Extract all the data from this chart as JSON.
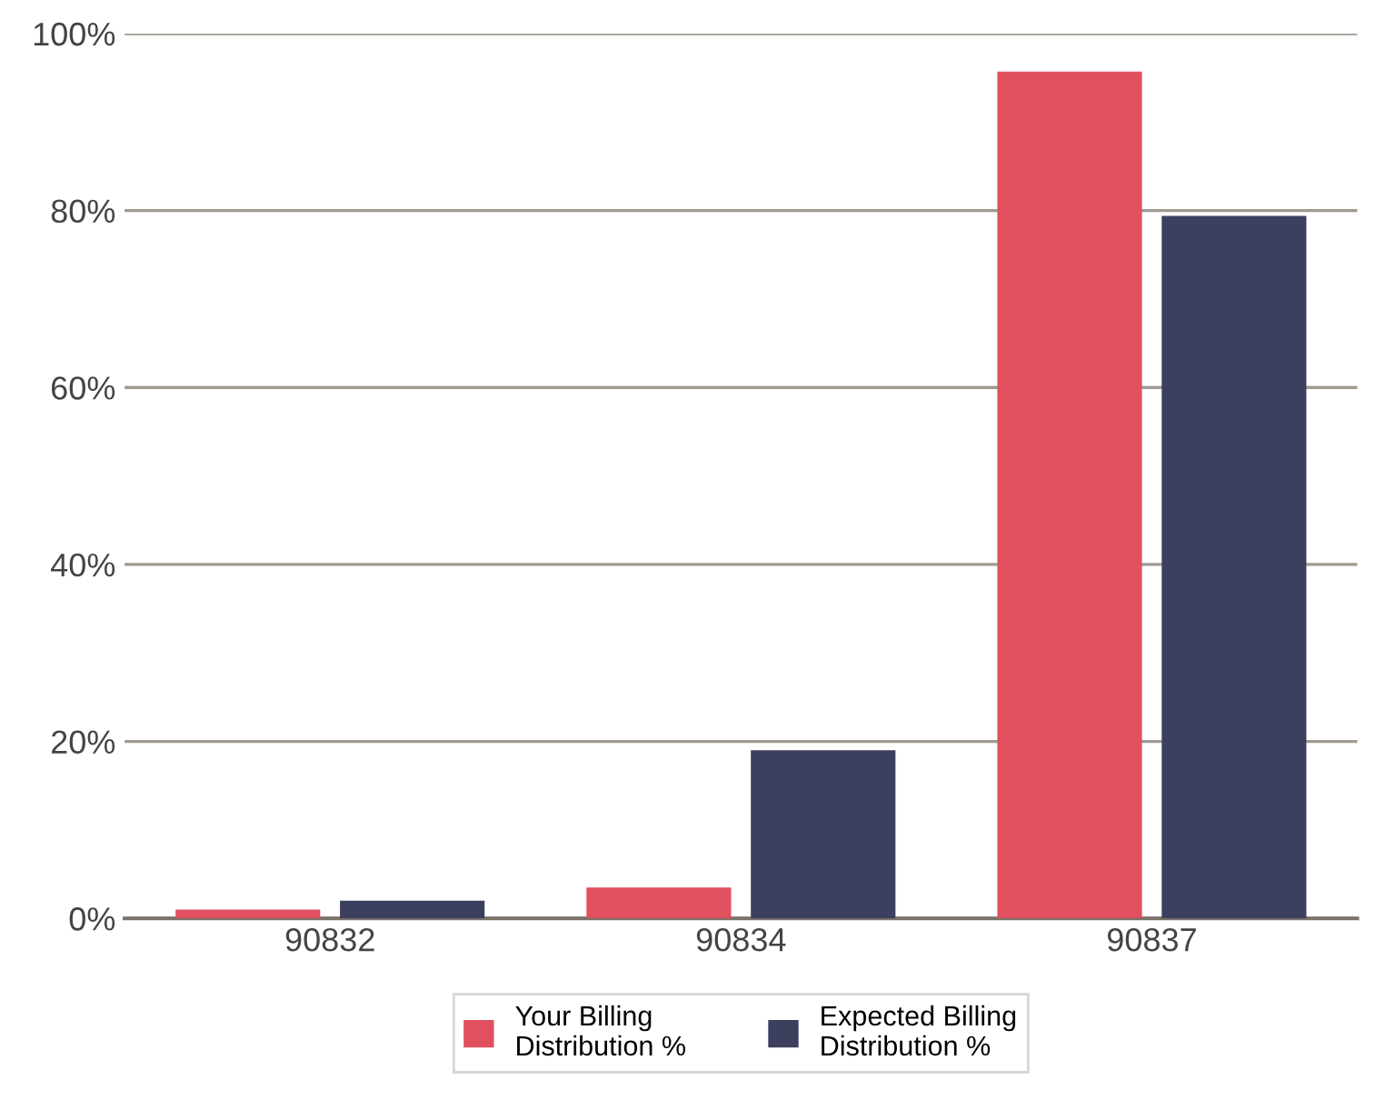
{
  "chart_data": {
    "type": "bar",
    "categories": [
      "90832",
      "90834",
      "90837"
    ],
    "series": [
      {
        "name": "Your Billing\nDistribution %",
        "color": "#e0505e",
        "values": [
          1,
          3.5,
          95.7
        ]
      },
      {
        "name": "Expected Billing\nDistribution %",
        "color": "#3c3f5e",
        "values": [
          2,
          19,
          79.4
        ]
      }
    ],
    "ylim": [
      0,
      100
    ],
    "yticks": [
      {
        "value": 0,
        "label": "0%"
      },
      {
        "value": 20,
        "label": "20%"
      },
      {
        "value": 40,
        "label": "40%"
      },
      {
        "value": 60,
        "label": "60%"
      },
      {
        "value": 80,
        "label": "80%"
      },
      {
        "value": 100,
        "label": "100%"
      }
    ],
    "grid": "y",
    "legend": "bottom"
  }
}
